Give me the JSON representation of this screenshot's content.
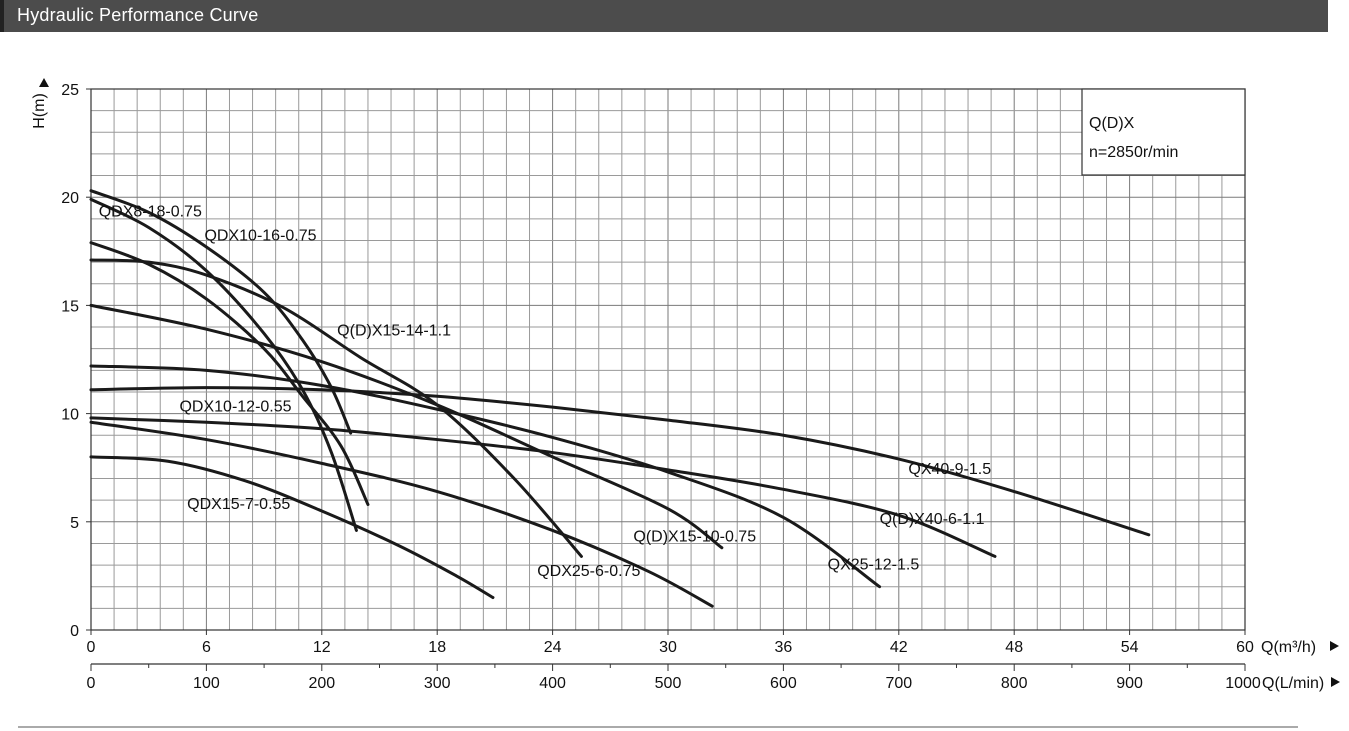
{
  "header": {
    "title": "Hydraulic Performance Curve",
    "bg_color": "#4c4c4c"
  },
  "chart_data": {
    "type": "line",
    "y_axis": {
      "label": "H(m)",
      "range": [
        0,
        25
      ],
      "ticks": [
        "0",
        "5",
        "10",
        "15",
        "20",
        "25"
      ]
    },
    "x_axis_top": {
      "label": "Q(m³/h)",
      "range": [
        0,
        60
      ],
      "ticks": [
        "0",
        "6",
        "12",
        "18",
        "24",
        "30",
        "36",
        "42",
        "48",
        "54",
        "60"
      ]
    },
    "x_axis_bottom": {
      "label": "Q(L/min)",
      "range": [
        0,
        1000
      ],
      "ticks": [
        "0",
        "100",
        "200",
        "300",
        "400",
        "500",
        "600",
        "700",
        "800",
        "900",
        "1000"
      ]
    },
    "grid": true,
    "legend_box": {
      "line1": "Q(D)X",
      "line2": "n=2850r/min",
      "placement": "top-right"
    },
    "series": [
      {
        "name": "QDX8-18-0.75",
        "points": [
          [
            0,
            19.9
          ],
          [
            3,
            18.6
          ],
          [
            6,
            16.6
          ],
          [
            9,
            13.7
          ],
          [
            11,
            11.1
          ],
          [
            12.5,
            8.2
          ],
          [
            13.8,
            4.6
          ]
        ]
      },
      {
        "name": "QDX10-16-0.75",
        "points": [
          [
            0,
            20.3
          ],
          [
            3,
            19.3
          ],
          [
            6,
            17.7
          ],
          [
            9,
            15.6
          ],
          [
            11,
            13.4
          ],
          [
            12.5,
            11.2
          ],
          [
            13.5,
            9.1
          ]
        ]
      },
      {
        "name": "QDX10-12-0.55",
        "points": [
          [
            0,
            17.9
          ],
          [
            3,
            16.9
          ],
          [
            6,
            15.3
          ],
          [
            9,
            13.0
          ],
          [
            11,
            10.8
          ],
          [
            13,
            8.5
          ],
          [
            14.4,
            5.8
          ]
        ]
      },
      {
        "name": "Q(D)X15-14-1.1",
        "points": [
          [
            0,
            17.1
          ],
          [
            3,
            17.0
          ],
          [
            6,
            16.4
          ],
          [
            10,
            14.9
          ],
          [
            14,
            12.6
          ],
          [
            18,
            10.4
          ],
          [
            22,
            7.0
          ],
          [
            25.5,
            3.4
          ]
        ]
      },
      {
        "name": "Q(D)X15-10-0.75",
        "points": [
          [
            0,
            15.0
          ],
          [
            6,
            13.9
          ],
          [
            12,
            12.4
          ],
          [
            18,
            10.4
          ],
          [
            24,
            8.0
          ],
          [
            30,
            5.6
          ],
          [
            32.8,
            3.8
          ]
        ]
      },
      {
        "name": "QX25-12-1.5",
        "points": [
          [
            0,
            12.2
          ],
          [
            6,
            12.0
          ],
          [
            12,
            11.3
          ],
          [
            18,
            10.2
          ],
          [
            24,
            8.9
          ],
          [
            30,
            7.3
          ],
          [
            36,
            5.2
          ],
          [
            41,
            2.0
          ]
        ]
      },
      {
        "name": "QX40-9-1.5",
        "points": [
          [
            0,
            11.1
          ],
          [
            6,
            11.2
          ],
          [
            12,
            11.1
          ],
          [
            18,
            10.8
          ],
          [
            24,
            10.3
          ],
          [
            30,
            9.7
          ],
          [
            36,
            9.0
          ],
          [
            42,
            7.9
          ],
          [
            48,
            6.4
          ],
          [
            55,
            4.4
          ]
        ]
      },
      {
        "name": "Q(D)X40-6-1.1",
        "points": [
          [
            0,
            9.8
          ],
          [
            6,
            9.6
          ],
          [
            12,
            9.3
          ],
          [
            18,
            8.8
          ],
          [
            24,
            8.2
          ],
          [
            30,
            7.4
          ],
          [
            36,
            6.5
          ],
          [
            42,
            5.3
          ],
          [
            47,
            3.4
          ]
        ]
      },
      {
        "name": "QDX25-6-0.75",
        "points": [
          [
            0,
            9.6
          ],
          [
            6,
            8.8
          ],
          [
            12,
            7.7
          ],
          [
            18,
            6.4
          ],
          [
            24,
            4.6
          ],
          [
            29,
            2.7
          ],
          [
            32.3,
            1.1
          ]
        ]
      },
      {
        "name": "QDX15-7-0.55",
        "points": [
          [
            0,
            8.0
          ],
          [
            4,
            7.8
          ],
          [
            8,
            6.9
          ],
          [
            12,
            5.5
          ],
          [
            16,
            3.9
          ],
          [
            19,
            2.5
          ],
          [
            20.9,
            1.5
          ]
        ]
      }
    ],
    "labels": [
      {
        "text": "QDX8-18-0.75",
        "at": [
          0.4,
          19.1
        ]
      },
      {
        "text": "QDX10-16-0.75",
        "at": [
          5.9,
          18.0
        ]
      },
      {
        "text": "Q(D)X15-14-1.1",
        "at": [
          12.8,
          13.6
        ]
      },
      {
        "text": "QDX10-12-0.55",
        "at": [
          4.6,
          10.1
        ]
      },
      {
        "text": "QDX15-7-0.55",
        "at": [
          5.0,
          5.6
        ]
      },
      {
        "text": "Q(D)X15-10-0.75",
        "at": [
          28.2,
          4.1
        ]
      },
      {
        "text": "QDX25-6-0.75",
        "at": [
          23.2,
          2.5
        ]
      },
      {
        "text": "QX25-12-1.5",
        "at": [
          38.3,
          2.8
        ]
      },
      {
        "text": "QX40-9-1.5",
        "at": [
          42.5,
          7.2
        ]
      },
      {
        "text": "Q(D)X40-6-1.1",
        "at": [
          41.0,
          4.9
        ]
      }
    ]
  }
}
